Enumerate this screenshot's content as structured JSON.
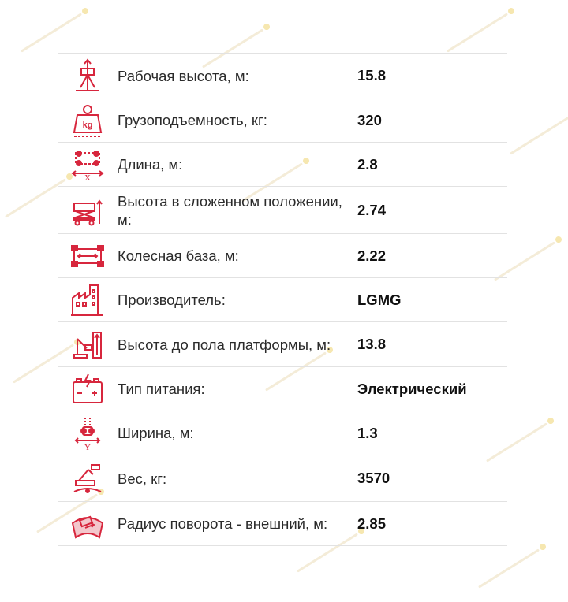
{
  "theme": {
    "accent": "#d7263d",
    "text": "#2b2b2b",
    "divider": "#e2e2e2"
  },
  "specs": [
    {
      "icon": "working-height-icon",
      "label": "Рабочая высота, м:",
      "value": "15.8"
    },
    {
      "icon": "load-capacity-icon",
      "label": "Грузоподъемность, кг:",
      "value": "320"
    },
    {
      "icon": "length-icon",
      "label": "Длина, м:",
      "value": "2.8"
    },
    {
      "icon": "stowed-height-icon",
      "label": "Высота в сложенном положении, м:",
      "value": "2.74"
    },
    {
      "icon": "wheelbase-icon",
      "label": "Колесная база, м:",
      "value": "2.22"
    },
    {
      "icon": "manufacturer-icon",
      "label": "Производитель:",
      "value": "LGMG"
    },
    {
      "icon": "platform-height-icon",
      "label": "Высота до пола платформы, м:",
      "value": "13.8"
    },
    {
      "icon": "power-type-icon",
      "label": "Тип питания:",
      "value": "Электрический"
    },
    {
      "icon": "width-icon",
      "label": "Ширина, м:",
      "value": "1.3"
    },
    {
      "icon": "weight-icon",
      "label": "Вес, кг:",
      "value": "3570"
    },
    {
      "icon": "turning-radius-icon",
      "label": "Радиус поворота - внешний, м:",
      "value": "2.85"
    }
  ]
}
